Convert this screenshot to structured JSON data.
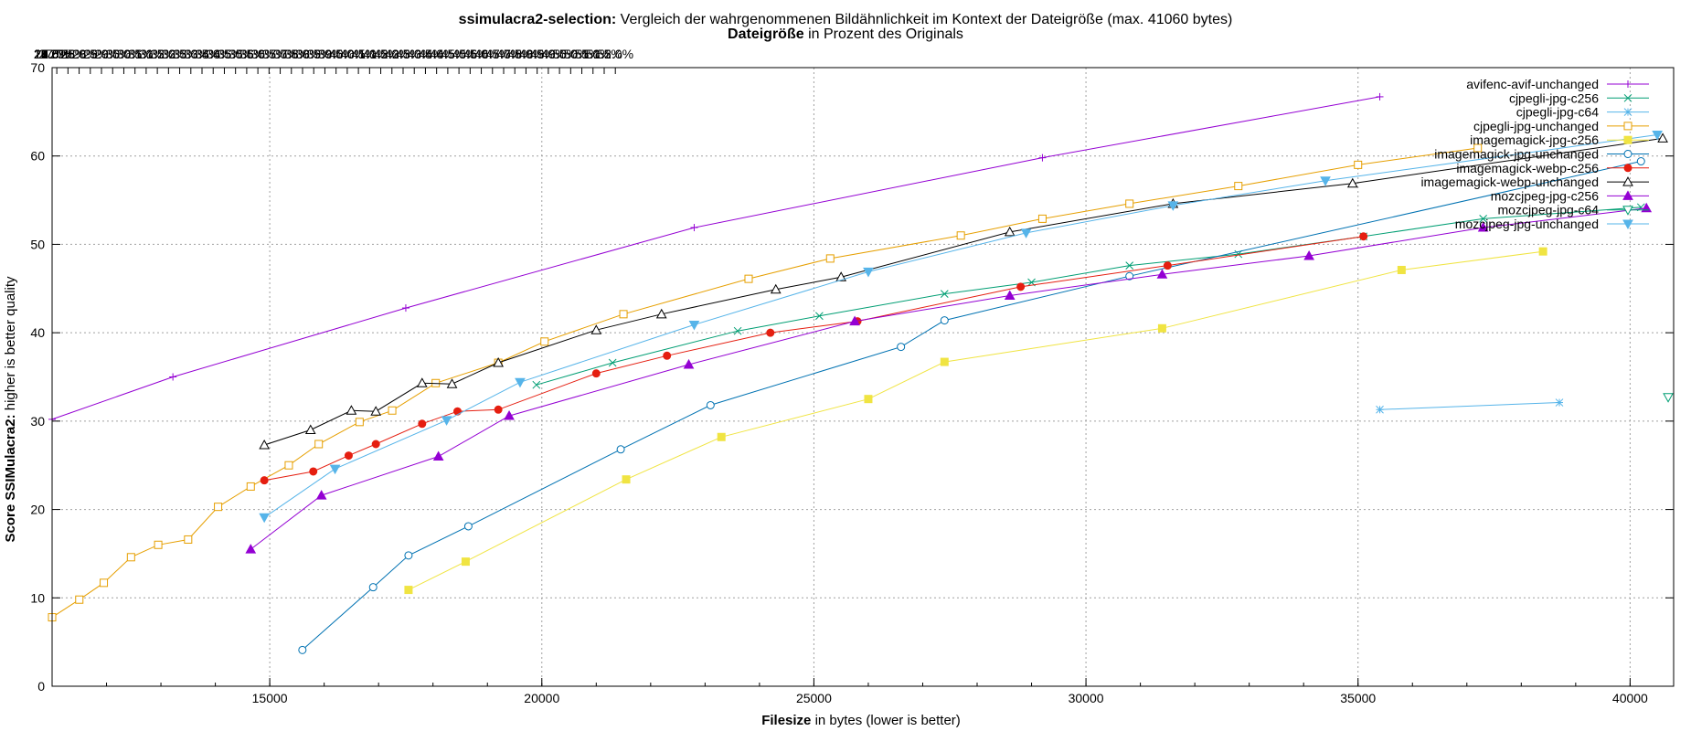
{
  "chart_data": {
    "type": "line",
    "title": {
      "bold": "ssimulacra2-selection:",
      "rest": " Vergleich der wahrgenommenen Bildähnlichkeit im Kontext der Dateigröße (max. 41060 bytes)"
    },
    "top_axis_label": {
      "bold": "Dateigröße",
      "rest": " in Prozent des Originals"
    },
    "xlabel": {
      "bold": "Filesize",
      "rest": " in bytes (lower is better)"
    },
    "ylabel": {
      "bold": "Score SSIMulacra2:",
      "rest": " higher is better quality"
    },
    "xlim": [
      11000,
      40800
    ],
    "ylim": [
      0,
      70
    ],
    "x_ticks": [
      "15000",
      "20000",
      "25000",
      "30000",
      "35000",
      "40000"
    ],
    "y_ticks": [
      "0",
      "10",
      "20",
      "30",
      "40",
      "50",
      "60",
      "70"
    ],
    "top_ticks": {
      "reference_bytes": 41060,
      "start_percent": 14.5,
      "end_percent": 52.0,
      "first_label": "14.5%",
      "last_label": "52.0%",
      "suffix": "%"
    },
    "grid": true,
    "legend_position": "top-right",
    "series": [
      {
        "name": "avifenc-avif-unchanged",
        "color": "#9400d3",
        "marker": "plus",
        "points": [
          [
            11000,
            30.2
          ],
          [
            13220,
            35.0
          ],
          [
            17500,
            42.8
          ],
          [
            22800,
            51.9
          ],
          [
            29200,
            59.8
          ],
          [
            35400,
            66.7
          ]
        ]
      },
      {
        "name": "cjpegli-jpg-c256",
        "color": "#009e73",
        "marker": "cross",
        "points": [
          [
            19900,
            34.1
          ],
          [
            21300,
            36.6
          ],
          [
            23600,
            40.2
          ],
          [
            25100,
            41.9
          ],
          [
            27400,
            44.4
          ],
          [
            29000,
            45.7
          ],
          [
            30800,
            47.6
          ],
          [
            32800,
            48.9
          ],
          [
            35100,
            50.9
          ],
          [
            37300,
            52.9
          ],
          [
            40200,
            54.2
          ]
        ]
      },
      {
        "name": "cjpegli-jpg-c64",
        "color": "#56b4e9",
        "marker": "star",
        "points": [
          [
            35400,
            31.3
          ],
          [
            38700,
            32.1
          ]
        ]
      },
      {
        "name": "cjpegli-jpg-unchanged",
        "color": "#e69f00",
        "marker": "open-square",
        "points": [
          [
            11000,
            7.8
          ],
          [
            11500,
            9.8
          ],
          [
            11950,
            11.7
          ],
          [
            12450,
            14.6
          ],
          [
            12950,
            16.0
          ],
          [
            13500,
            16.6
          ],
          [
            14050,
            20.3
          ],
          [
            14650,
            22.6
          ],
          [
            15350,
            25.0
          ],
          [
            15900,
            27.4
          ],
          [
            16650,
            29.9
          ],
          [
            17250,
            31.2
          ],
          [
            18050,
            34.3
          ],
          [
            19200,
            36.6
          ],
          [
            20050,
            39.0
          ],
          [
            21500,
            42.1
          ],
          [
            23800,
            46.1
          ],
          [
            25300,
            48.4
          ],
          [
            27700,
            51.0
          ],
          [
            29200,
            52.9
          ],
          [
            30800,
            54.6
          ],
          [
            32800,
            56.6
          ],
          [
            35000,
            59.0
          ],
          [
            37200,
            60.9
          ]
        ]
      },
      {
        "name": "imagemagick-jpg-c256",
        "color": "#f0e442",
        "marker": "filled-square",
        "points": [
          [
            17550,
            10.9
          ],
          [
            18600,
            14.1
          ],
          [
            21550,
            23.4
          ],
          [
            23300,
            28.2
          ],
          [
            26000,
            32.5
          ],
          [
            27400,
            36.7
          ],
          [
            31400,
            40.5
          ],
          [
            35800,
            47.1
          ],
          [
            38400,
            49.2
          ]
        ]
      },
      {
        "name": "imagemagick-jpg-unchanged",
        "color": "#0072b2",
        "marker": "open-circle",
        "points": [
          [
            15600,
            4.1
          ],
          [
            16900,
            11.2
          ],
          [
            17550,
            14.8
          ],
          [
            18650,
            18.1
          ],
          [
            21450,
            26.8
          ],
          [
            23100,
            31.8
          ],
          [
            26600,
            38.4
          ],
          [
            27400,
            41.4
          ],
          [
            30800,
            46.4
          ],
          [
            40200,
            59.4
          ]
        ]
      },
      {
        "name": "imagemagick-webp-c256",
        "color": "#e51e10",
        "marker": "filled-circle",
        "points": [
          [
            14900,
            23.3
          ],
          [
            15800,
            24.3
          ],
          [
            16450,
            26.1
          ],
          [
            16950,
            27.4
          ],
          [
            17800,
            29.7
          ],
          [
            18450,
            31.1
          ],
          [
            19200,
            31.3
          ],
          [
            21000,
            35.4
          ],
          [
            22300,
            37.4
          ],
          [
            24200,
            40.0
          ],
          [
            25800,
            41.3
          ],
          [
            28800,
            45.2
          ],
          [
            31500,
            47.6
          ],
          [
            35100,
            50.9
          ]
        ]
      },
      {
        "name": "imagemagick-webp-unchanged",
        "color": "#000000",
        "marker": "open-triangle",
        "points": [
          [
            14900,
            27.3
          ],
          [
            15750,
            29.0
          ],
          [
            16500,
            31.2
          ],
          [
            16950,
            31.1
          ],
          [
            17800,
            34.3
          ],
          [
            18350,
            34.2
          ],
          [
            19200,
            36.6
          ],
          [
            21000,
            40.3
          ],
          [
            22200,
            42.1
          ],
          [
            24300,
            44.9
          ],
          [
            25500,
            46.3
          ],
          [
            28600,
            51.4
          ],
          [
            31600,
            54.6
          ],
          [
            34900,
            56.9
          ],
          [
            40600,
            62.0
          ]
        ]
      },
      {
        "name": "mozcjpeg-jpg-c256",
        "color": "#9400d3",
        "marker": "filled-triangle",
        "points": [
          [
            14650,
            15.5
          ],
          [
            15950,
            21.6
          ],
          [
            18100,
            26.0
          ],
          [
            19400,
            30.6
          ],
          [
            22700,
            36.4
          ],
          [
            25750,
            41.3
          ],
          [
            28600,
            44.2
          ],
          [
            31400,
            46.6
          ],
          [
            34100,
            48.7
          ],
          [
            37300,
            51.9
          ],
          [
            40300,
            54.1
          ]
        ]
      },
      {
        "name": "mozcjpeg-jpg-c64",
        "color": "#009e73",
        "marker": "open-triangle-down",
        "points": [
          [
            40700,
            32.7
          ]
        ]
      },
      {
        "name": "mozcjpeg-jpg-unchanged",
        "color": "#56b4e9",
        "marker": "filled-triangle-down",
        "points": [
          [
            14900,
            19.1
          ],
          [
            16200,
            24.6
          ],
          [
            18250,
            30.1
          ],
          [
            19600,
            34.4
          ],
          [
            22800,
            40.9
          ],
          [
            26000,
            46.9
          ],
          [
            28900,
            51.3
          ],
          [
            31600,
            54.4
          ],
          [
            34400,
            57.2
          ],
          [
            40500,
            62.4
          ]
        ]
      }
    ]
  }
}
